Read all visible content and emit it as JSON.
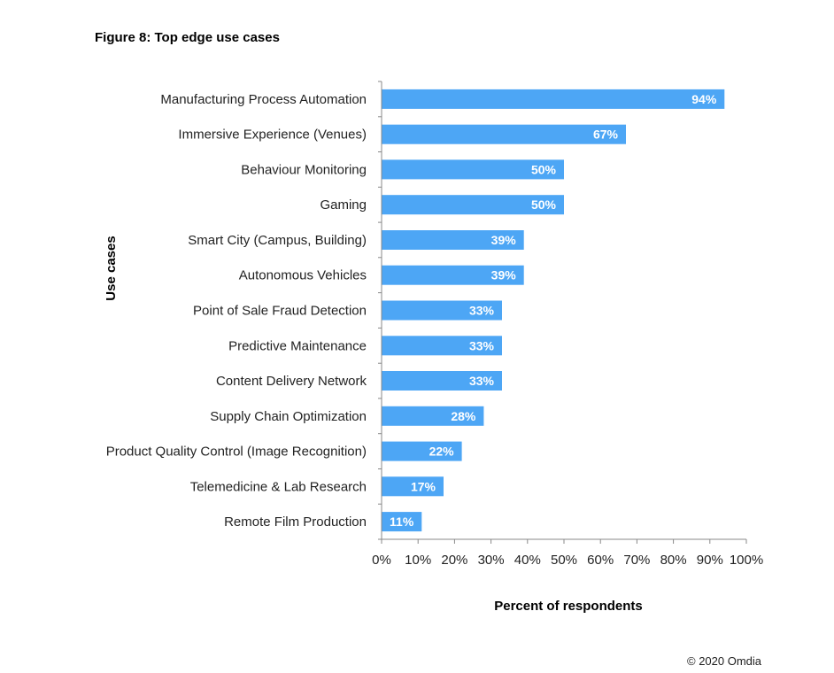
{
  "figure": {
    "title": "Figure 8: Top edge use cases",
    "copyright": "© 2020 Omdia"
  },
  "chart_data": {
    "type": "bar",
    "orientation": "horizontal",
    "title": "Figure 8: Top edge use cases",
    "xlabel": "Percent of respondents",
    "ylabel": "Use cases",
    "xlim": [
      0,
      100
    ],
    "x_ticks": [
      "0%",
      "10%",
      "20%",
      "30%",
      "40%",
      "50%",
      "60%",
      "70%",
      "80%",
      "90%",
      "100%"
    ],
    "categories": [
      "Manufacturing Process Automation",
      "Immersive Experience (Venues)",
      "Behaviour Monitoring",
      "Gaming",
      "Smart City (Campus, Building)",
      "Autonomous Vehicles",
      "Point of Sale Fraud Detection",
      "Predictive Maintenance",
      "Content Delivery Network",
      "Supply Chain Optimization",
      "Product Quality Control (Image Recognition)",
      "Telemedicine & Lab Research",
      "Remote Film Production"
    ],
    "values": [
      94,
      67,
      50,
      50,
      39,
      39,
      33,
      33,
      33,
      28,
      22,
      17,
      11
    ],
    "data_labels": [
      "94%",
      "67%",
      "50%",
      "50%",
      "39%",
      "39%",
      "33%",
      "33%",
      "33%",
      "28%",
      "22%",
      "17%",
      "11%"
    ],
    "bar_color": "#4da6f5",
    "grid": false,
    "legend": "none"
  }
}
